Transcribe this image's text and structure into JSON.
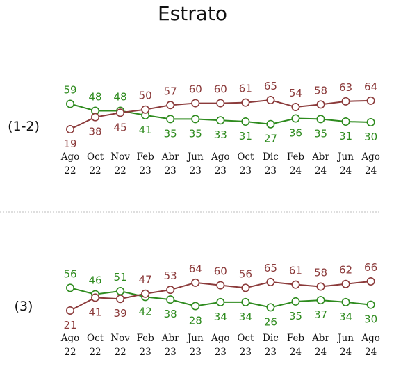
{
  "title": "Estrato",
  "colors": {
    "red": "#8b3a3a",
    "green": "#2e8b1e"
  },
  "chart_data": [
    {
      "type": "line",
      "panel_label": "(1-2)",
      "categories": [
        {
          "month": "Ago",
          "year": "22"
        },
        {
          "month": "Oct",
          "year": "22"
        },
        {
          "month": "Nov",
          "year": "22"
        },
        {
          "month": "Feb",
          "year": "23"
        },
        {
          "month": "Abr",
          "year": "23"
        },
        {
          "month": "Jun",
          "year": "23"
        },
        {
          "month": "Ago",
          "year": "23"
        },
        {
          "month": "Oct",
          "year": "23"
        },
        {
          "month": "Dic",
          "year": "23"
        },
        {
          "month": "Feb",
          "year": "24"
        },
        {
          "month": "Abr",
          "year": "24"
        },
        {
          "month": "Jun",
          "year": "24"
        },
        {
          "month": "Ago",
          "year": "24"
        }
      ],
      "series": [
        {
          "color": "red",
          "values": [
            19,
            38,
            45,
            50,
            57,
            60,
            60,
            61,
            65,
            54,
            58,
            63,
            64
          ]
        },
        {
          "color": "green",
          "values": [
            59,
            48,
            48,
            41,
            35,
            35,
            33,
            31,
            27,
            36,
            35,
            31,
            30
          ]
        }
      ]
    },
    {
      "type": "line",
      "panel_label": "(3)",
      "categories": [
        {
          "month": "Ago",
          "year": "22"
        },
        {
          "month": "Oct",
          "year": "22"
        },
        {
          "month": "Nov",
          "year": "22"
        },
        {
          "month": "Feb",
          "year": "23"
        },
        {
          "month": "Abr",
          "year": "23"
        },
        {
          "month": "Jun",
          "year": "23"
        },
        {
          "month": "Ago",
          "year": "23"
        },
        {
          "month": "Oct",
          "year": "23"
        },
        {
          "month": "Dic",
          "year": "23"
        },
        {
          "month": "Feb",
          "year": "24"
        },
        {
          "month": "Abr",
          "year": "24"
        },
        {
          "month": "Jun",
          "year": "24"
        },
        {
          "month": "Ago",
          "year": "24"
        }
      ],
      "series": [
        {
          "color": "red",
          "values": [
            21,
            41,
            39,
            47,
            53,
            64,
            60,
            56,
            65,
            61,
            58,
            62,
            66
          ]
        },
        {
          "color": "green",
          "values": [
            56,
            46,
            51,
            42,
            38,
            28,
            34,
            34,
            26,
            35,
            37,
            34,
            30
          ]
        }
      ]
    }
  ]
}
